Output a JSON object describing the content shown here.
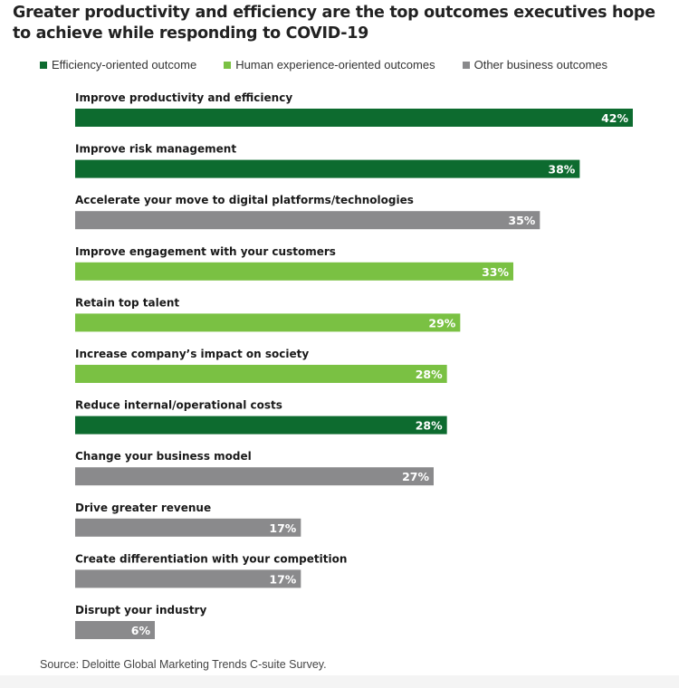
{
  "colors": {
    "efficiency": "#0d6b2f",
    "human": "#7ac143",
    "other": "#8a8a8c"
  },
  "chart_data": {
    "type": "bar",
    "orientation": "horizontal",
    "title": "Greater productivity and efficiency are the top outcomes executives hope to achieve while responding to COVID-19",
    "legend": [
      {
        "key": "efficiency",
        "label": "Efficiency-oriented outcome"
      },
      {
        "key": "human",
        "label": "Human experience-oriented outcomes"
      },
      {
        "key": "other",
        "label": "Other business outcomes"
      }
    ],
    "categories": [
      "Improve productivity and efficiency",
      "Improve risk management",
      "Accelerate your move to digital platforms/technologies",
      "Improve engagement with your customers",
      "Retain top talent",
      "Increase company’s impact on society",
      "Reduce internal/operational costs",
      "Change your business model",
      "Drive greater revenue",
      "Create differentiation with your competition",
      "Disrupt your industry"
    ],
    "values": [
      42,
      38,
      35,
      33,
      29,
      28,
      28,
      27,
      17,
      17,
      6
    ],
    "value_labels": [
      "42%",
      "38%",
      "35%",
      "33%",
      "29%",
      "28%",
      "28%",
      "27%",
      "17%",
      "17%",
      "6%"
    ],
    "groups": [
      "efficiency",
      "efficiency",
      "other",
      "human",
      "human",
      "human",
      "efficiency",
      "other",
      "other",
      "other",
      "other"
    ],
    "unit": "%",
    "xlim": [
      0,
      42
    ],
    "grid": false,
    "legend_position": "top-left"
  },
  "source": "Source: Deloitte Global Marketing Trends C-suite Survey."
}
